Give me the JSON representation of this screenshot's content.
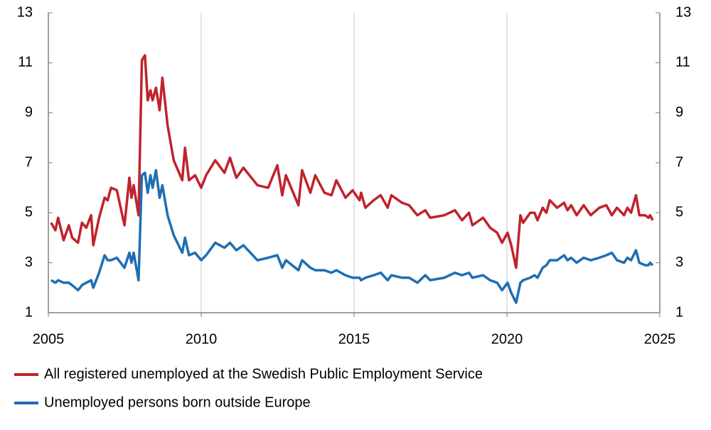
{
  "chart_data": {
    "type": "line",
    "x": [
      2005.09,
      2005.23,
      2005.32,
      2005.5,
      2005.67,
      2005.78,
      2005.97,
      2006.1,
      2006.24,
      2006.4,
      2006.47,
      2006.66,
      2006.84,
      2006.94,
      2007.05,
      2007.24,
      2007.49,
      2007.65,
      2007.72,
      2007.79,
      2007.95,
      2008.06,
      2008.16,
      2008.25,
      2008.34,
      2008.41,
      2008.52,
      2008.64,
      2008.73,
      2008.9,
      2009.1,
      2009.38,
      2009.47,
      2009.6,
      2009.8,
      2010.0,
      2010.16,
      2010.46,
      2010.76,
      2010.94,
      2011.15,
      2011.38,
      2011.84,
      2012.19,
      2012.49,
      2012.65,
      2012.77,
      2013.18,
      2013.3,
      2013.57,
      2013.73,
      2014.03,
      2014.26,
      2014.42,
      2014.72,
      2014.95,
      2015.18,
      2015.23,
      2015.37,
      2015.64,
      2015.87,
      2016.1,
      2016.22,
      2016.57,
      2016.8,
      2017.07,
      2017.33,
      2017.49,
      2017.95,
      2018.3,
      2018.53,
      2018.76,
      2018.87,
      2019.22,
      2019.45,
      2019.68,
      2019.84,
      2020.02,
      2020.14,
      2020.3,
      2020.44,
      2020.53,
      2020.76,
      2020.9,
      2021.0,
      2021.17,
      2021.29,
      2021.4,
      2021.64,
      2021.87,
      2021.98,
      2022.1,
      2022.28,
      2022.51,
      2022.74,
      2023.02,
      2023.25,
      2023.43,
      2023.6,
      2023.83,
      2023.94,
      2024.06,
      2024.22,
      2024.33,
      2024.52,
      2024.63,
      2024.68,
      2024.77
    ],
    "series": [
      {
        "name": "All registered unemployed at the Swedish Public Employment Service",
        "color": "#c0232c",
        "values": [
          4.6,
          4.3,
          4.8,
          3.9,
          4.5,
          4.0,
          3.8,
          4.6,
          4.4,
          4.9,
          3.7,
          4.8,
          5.6,
          5.5,
          6.0,
          5.9,
          4.5,
          6.4,
          5.6,
          6.1,
          4.9,
          11.1,
          11.3,
          9.5,
          9.9,
          9.5,
          10.0,
          9.1,
          10.4,
          8.5,
          7.1,
          6.3,
          7.6,
          6.3,
          6.5,
          6.0,
          6.5,
          7.1,
          6.6,
          7.2,
          6.4,
          6.8,
          6.1,
          6.0,
          6.9,
          5.7,
          6.5,
          5.3,
          6.7,
          5.8,
          6.5,
          5.8,
          5.7,
          6.3,
          5.6,
          5.9,
          5.5,
          5.8,
          5.2,
          5.5,
          5.7,
          5.2,
          5.7,
          5.4,
          5.3,
          4.9,
          5.1,
          4.8,
          4.9,
          5.1,
          4.7,
          5.0,
          4.5,
          4.8,
          4.4,
          4.2,
          3.8,
          4.2,
          3.7,
          2.8,
          4.9,
          4.6,
          5.0,
          5.0,
          4.7,
          5.2,
          5.0,
          5.5,
          5.2,
          5.4,
          5.1,
          5.3,
          4.9,
          5.3,
          4.9,
          5.2,
          5.3,
          4.9,
          5.2,
          4.9,
          5.2,
          5.0,
          5.7,
          4.9,
          4.9,
          4.8,
          4.9,
          4.7
        ]
      },
      {
        "name": "Unemployed persons born outside Europe",
        "color": "#1f6eb3",
        "values": [
          2.3,
          2.2,
          2.3,
          2.2,
          2.2,
          2.1,
          1.9,
          2.1,
          2.2,
          2.3,
          2.0,
          2.6,
          3.3,
          3.1,
          3.1,
          3.2,
          2.8,
          3.4,
          3.0,
          3.4,
          2.3,
          6.5,
          6.6,
          5.8,
          6.5,
          6.0,
          6.7,
          5.6,
          6.1,
          4.9,
          4.1,
          3.4,
          4.0,
          3.3,
          3.4,
          3.1,
          3.3,
          3.8,
          3.6,
          3.8,
          3.5,
          3.7,
          3.1,
          3.2,
          3.3,
          2.8,
          3.1,
          2.7,
          3.1,
          2.8,
          2.7,
          2.7,
          2.6,
          2.7,
          2.5,
          2.4,
          2.4,
          2.3,
          2.4,
          2.5,
          2.6,
          2.3,
          2.5,
          2.4,
          2.4,
          2.2,
          2.5,
          2.3,
          2.4,
          2.6,
          2.5,
          2.6,
          2.4,
          2.5,
          2.3,
          2.2,
          1.9,
          2.2,
          1.8,
          1.4,
          2.2,
          2.3,
          2.4,
          2.5,
          2.4,
          2.8,
          2.9,
          3.1,
          3.1,
          3.3,
          3.1,
          3.2,
          3.0,
          3.2,
          3.1,
          3.2,
          3.3,
          3.4,
          3.1,
          3.0,
          3.2,
          3.1,
          3.5,
          3.0,
          2.9,
          2.9,
          3.0,
          2.9
        ]
      }
    ],
    "xlim": [
      2005,
      2025
    ],
    "xticks": [
      2005,
      2010,
      2015,
      2020,
      2025
    ],
    "ylim": [
      1,
      13
    ],
    "yticks": [
      1,
      3,
      5,
      7,
      9,
      11,
      13
    ],
    "y2lim": [
      1,
      13
    ],
    "y2ticks": [
      1,
      3,
      5,
      7,
      9,
      11,
      13
    ],
    "grid": true
  }
}
